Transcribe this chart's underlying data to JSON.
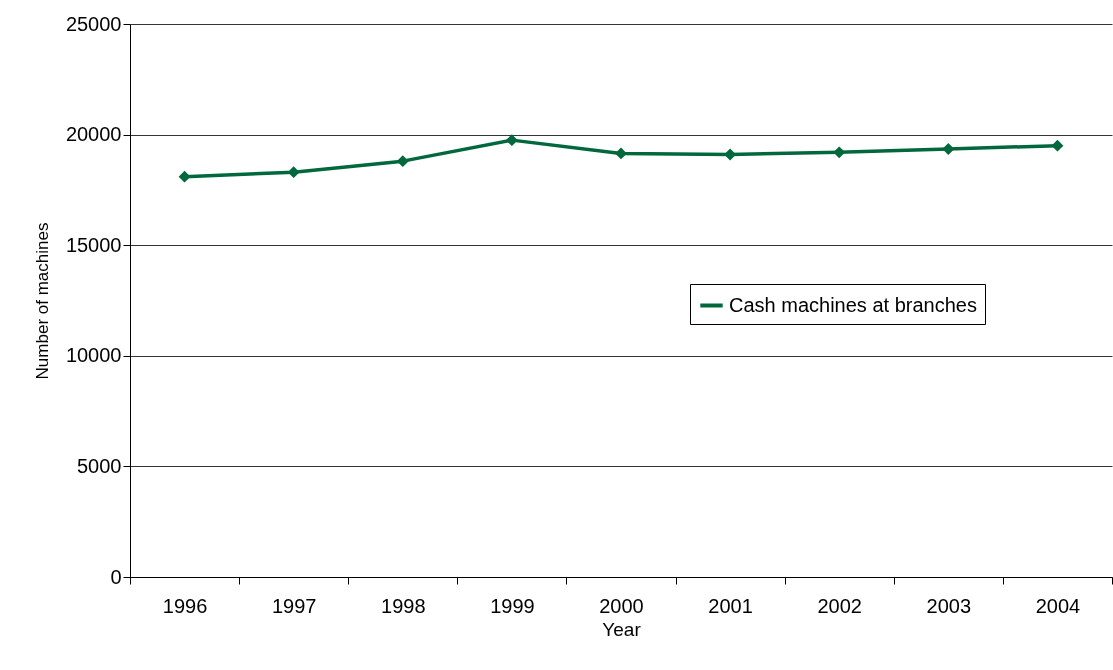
{
  "chart_data": {
    "type": "line",
    "xlabel": "Year",
    "ylabel": "Number of machines",
    "categories": [
      "1996",
      "1997",
      "1998",
      "1999",
      "2000",
      "2001",
      "2002",
      "2003",
      "2004"
    ],
    "series": [
      {
        "name": "Cash machines at branches",
        "color": "#00683c",
        "values": [
          18100,
          18300,
          18800,
          19750,
          19150,
          19100,
          19200,
          19350,
          19500
        ]
      }
    ],
    "ylim": [
      0,
      25000
    ],
    "yticks": [
      0,
      5000,
      10000,
      15000,
      20000,
      25000
    ],
    "grid": "y",
    "legend": "right",
    "marker": "diamond",
    "line_style": "solid"
  }
}
